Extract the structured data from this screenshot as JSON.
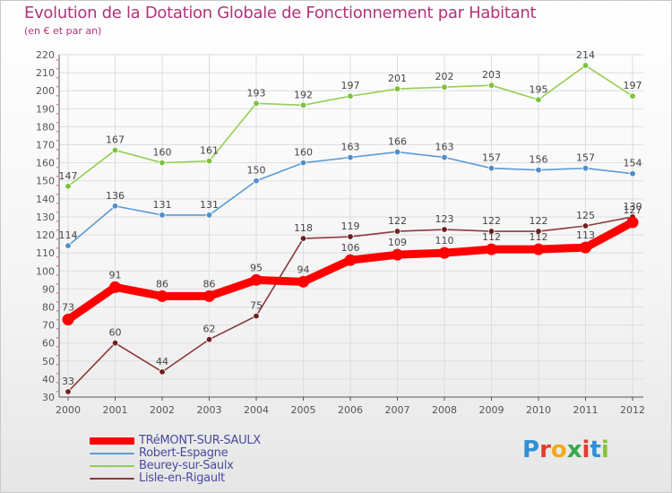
{
  "header": {
    "title": "Evolution de la Dotation Globale de Fonctionnement par Habitant",
    "subtitle": "(en € et par an)"
  },
  "colors": {
    "title": "#b0347a",
    "grid": "#dddddd",
    "axis": "#555555",
    "label": "#555555"
  },
  "logo": {
    "letters": [
      "P",
      "r",
      "o",
      "x",
      "i",
      "t",
      "i"
    ],
    "colors": [
      "#2f8fd6",
      "#e23d2f",
      "#f2a81d",
      "#3aa64a",
      "#e23d2f",
      "#2f8fd6",
      "#8ac23a"
    ]
  },
  "chart_data": {
    "type": "line",
    "title": "Evolution de la Dotation Globale de Fonctionnement par Habitant",
    "subtitle": "(en € et par an)",
    "xlabel": "",
    "ylabel": "",
    "categories": [
      "2000",
      "2001",
      "2002",
      "2003",
      "2004",
      "2005",
      "2006",
      "2007",
      "2008",
      "2009",
      "2010",
      "2011",
      "2012"
    ],
    "ylim": [
      30,
      220
    ],
    "yticks": [
      30,
      40,
      50,
      60,
      70,
      80,
      90,
      100,
      110,
      120,
      130,
      140,
      150,
      160,
      170,
      180,
      190,
      200,
      210,
      220
    ],
    "grid": true,
    "legend_position": "bottom-left",
    "series": [
      {
        "name": "Robert-Espagne",
        "color": "#5b9bd5",
        "marker": "#4f8ec8",
        "values": [
          114,
          136,
          131,
          131,
          150,
          160,
          163,
          166,
          163,
          157,
          156,
          157,
          154
        ],
        "emphasis": false
      },
      {
        "name": "Beurey-sur-Saulx",
        "color": "#92d050",
        "marker": "#7cc23d",
        "values": [
          147,
          167,
          160,
          161,
          193,
          192,
          197,
          201,
          202,
          203,
          195,
          214,
          197
        ],
        "emphasis": false
      },
      {
        "name": "Lisle-en-Rigault",
        "color": "#8b3a3a",
        "marker": "#6e1f1f",
        "values": [
          33,
          60,
          44,
          62,
          75,
          118,
          119,
          122,
          123,
          122,
          122,
          125,
          130
        ],
        "emphasis": false
      },
      {
        "name": "TRéMONT-SUR-SAULX",
        "color": "#ff0000",
        "marker": "#ff0000",
        "values": [
          73,
          91,
          86,
          86,
          95,
          94,
          106,
          109,
          110,
          112,
          112,
          113,
          127
        ],
        "emphasis": true
      }
    ],
    "legend_order": [
      "TRéMONT-SUR-SAULX",
      "Robert-Espagne",
      "Beurey-sur-Saulx",
      "Lisle-en-Rigault"
    ]
  }
}
